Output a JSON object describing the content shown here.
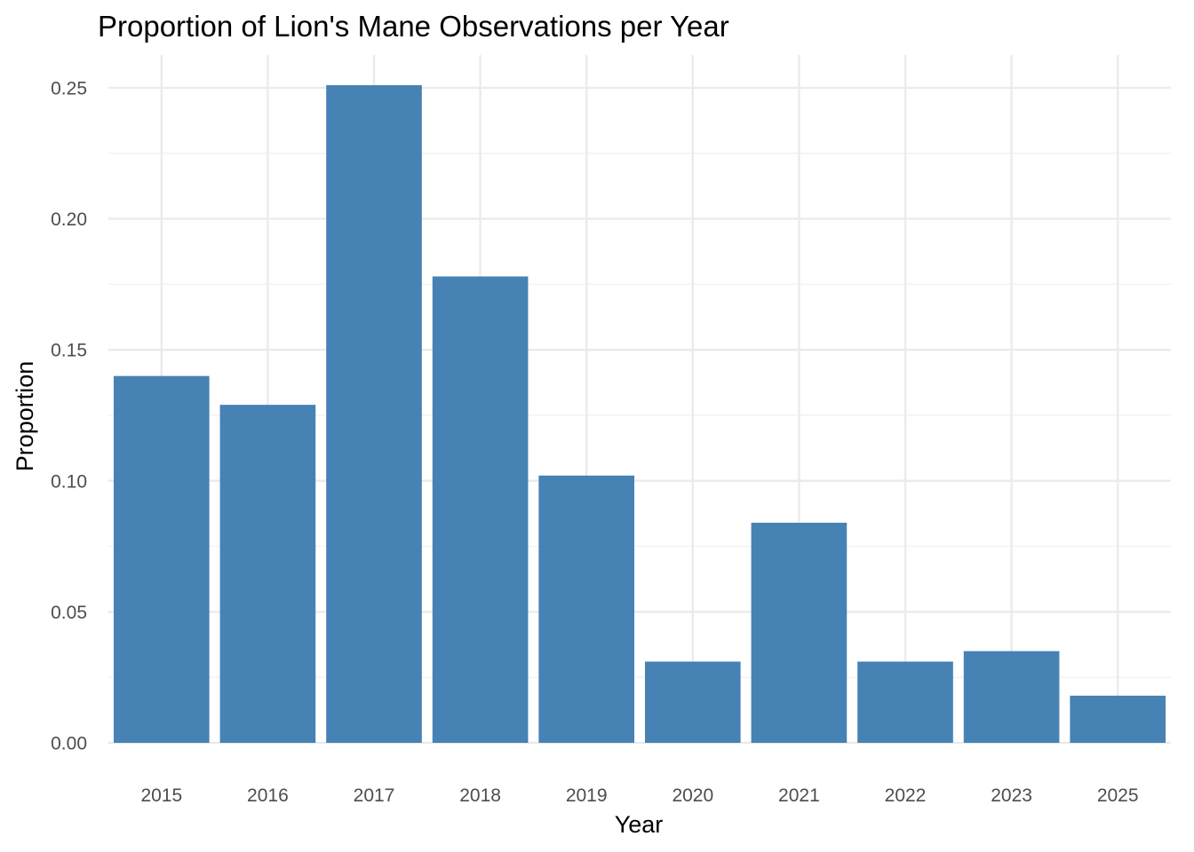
{
  "chart_data": {
    "type": "bar",
    "title": "Proportion of Lion's Mane Observations per Year",
    "xlabel": "Year",
    "ylabel": "Proportion",
    "categories": [
      "2015",
      "2016",
      "2017",
      "2018",
      "2019",
      "2020",
      "2021",
      "2022",
      "2023",
      "2025"
    ],
    "values": [
      0.14,
      0.129,
      0.251,
      0.178,
      0.102,
      0.031,
      0.084,
      0.031,
      0.035,
      0.018
    ],
    "ylim": [
      0,
      0.2625
    ],
    "yticks": [
      0.0,
      0.05,
      0.1,
      0.15,
      0.2,
      0.25
    ],
    "ytick_labels": [
      "0.00",
      "0.05",
      "0.10",
      "0.15",
      "0.20",
      "0.25"
    ],
    "bar_color": "#4682b4",
    "grid": true,
    "legend": "none"
  }
}
